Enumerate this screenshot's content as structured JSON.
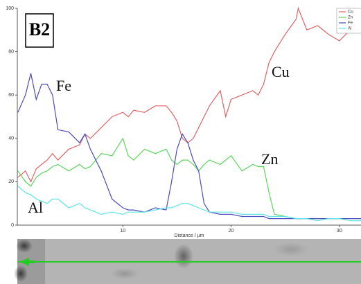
{
  "chart_data": {
    "type": "line",
    "x_label": "Distance / µm",
    "x": [
      0.3,
      1,
      1.5,
      2,
      2.5,
      3,
      3.5,
      4,
      5,
      6,
      6.5,
      7,
      8,
      9,
      10,
      10.5,
      11,
      12,
      13,
      14,
      14.5,
      15,
      15.5,
      16,
      16.5,
      17,
      17.5,
      18,
      19,
      19.5,
      20,
      21,
      22,
      22.5,
      23,
      23.5,
      24,
      25,
      26,
      26.2,
      27,
      28,
      29,
      30,
      31,
      32
    ],
    "series": [
      {
        "name": "Cu",
        "color": "#e06464",
        "values": [
          22,
          25,
          20,
          26,
          28,
          30,
          33,
          30,
          35,
          37,
          42,
          40,
          45,
          50,
          52,
          50,
          53,
          52,
          55,
          55,
          52,
          48,
          40,
          38,
          40,
          45,
          50,
          55,
          62,
          50,
          58,
          60,
          62,
          60,
          65,
          75,
          80,
          88,
          95,
          100,
          90,
          92,
          88,
          85,
          90,
          92
        ]
      },
      {
        "name": "Zn",
        "color": "#5cd45c",
        "values": [
          25,
          20,
          18,
          22,
          24,
          25,
          27,
          28,
          25,
          28,
          26,
          27,
          33,
          32,
          40,
          32,
          30,
          35,
          33,
          35,
          30,
          28,
          30,
          30,
          28,
          25,
          28,
          30,
          28,
          30,
          32,
          25,
          28,
          27,
          27,
          15,
          5,
          4,
          3,
          3,
          3,
          3,
          3,
          3,
          3,
          3
        ]
      },
      {
        "name": "Fe",
        "color": "#4a4ac0",
        "values": [
          52,
          60,
          70,
          58,
          65,
          65,
          60,
          44,
          43,
          38,
          42,
          35,
          25,
          12,
          8,
          7,
          7,
          6,
          8,
          7,
          20,
          35,
          42,
          38,
          30,
          25,
          10,
          6,
          5,
          5,
          5,
          4,
          4,
          4,
          4,
          3,
          3,
          3,
          3,
          3,
          3,
          3,
          3,
          3,
          3,
          3
        ]
      },
      {
        "name": "Al",
        "color": "#5ce4e4",
        "values": [
          18,
          15,
          14,
          12,
          11,
          10,
          12,
          12,
          8,
          10,
          8,
          7,
          5,
          6,
          5,
          6,
          6,
          6,
          7,
          8,
          8,
          9,
          10,
          10,
          9,
          8,
          7,
          6,
          6,
          6,
          6,
          5,
          5,
          5,
          5,
          4,
          4,
          4,
          3,
          3,
          3,
          2,
          3,
          3,
          2,
          2
        ]
      }
    ],
    "xlim": [
      0.25,
      32
    ],
    "xticks": [
      10,
      20,
      30
    ],
    "ylim": [
      0,
      100
    ],
    "yticks": [
      0,
      20,
      40,
      60,
      80,
      100
    ],
    "annotations": [
      "B2",
      "Fe",
      "Cu",
      "Zn",
      "Al"
    ],
    "legend": "top-right"
  }
}
